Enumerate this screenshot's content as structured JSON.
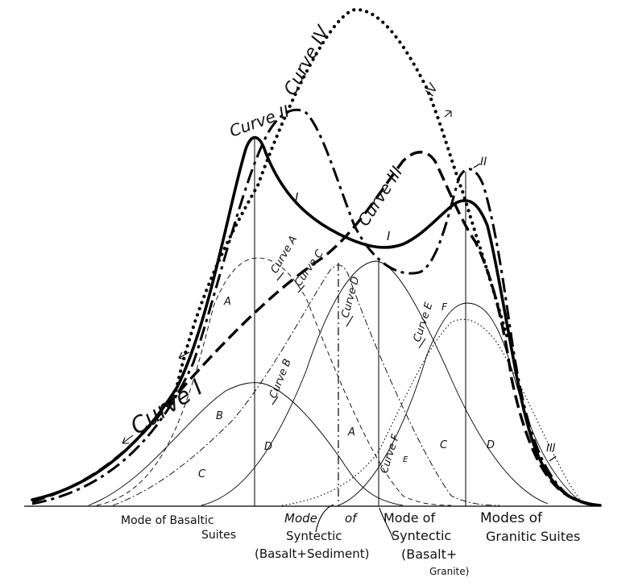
{
  "curve_labels": {
    "curve_1": "Curve I",
    "curve_2": "Curve II",
    "curve_3": "Curve III",
    "curve_4": "Curve IV",
    "curve_a": "Curve A",
    "curve_b": "Curve B",
    "curve_c": "Curve C",
    "curve_d": "Curve D",
    "curve_e": "Curve E",
    "curve_f": "Curve F"
  },
  "short_labels": {
    "i_left": "I",
    "i_right": "I",
    "ii_right": "II",
    "iii_right": "III",
    "iv_right": "IV",
    "a_left": "A",
    "a_right": "A",
    "b": "B",
    "c_left": "C",
    "c_right": "C",
    "d_left": "D",
    "d_right": "D",
    "e": "E",
    "f": "F"
  },
  "mode_labels": {
    "basaltic_1": "Mode of Basaltic",
    "basaltic_2": "Suites",
    "syn_sed_1": "Mode",
    "syn_sed_of": "of",
    "syn_sed_2": "Syntectic",
    "syn_sed_3": "(Basalt+Sediment)",
    "syn_gra_1": "Mode of",
    "syn_gra_2": "Syntectic",
    "syn_gra_3": "(Basalt+",
    "syn_gra_4": "Granite)",
    "granitic_1": "Modes of",
    "granitic_2": "Granitic Suites"
  }
}
